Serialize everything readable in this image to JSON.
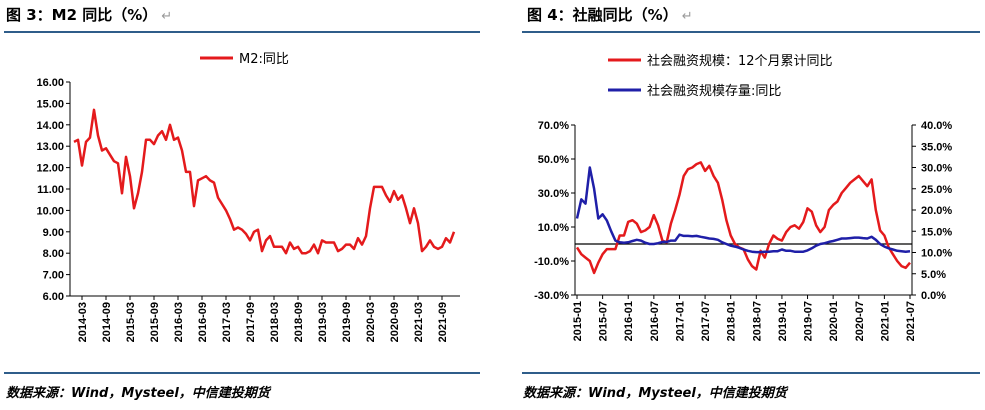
{
  "figure_left": {
    "title": "图 3：M2 同比（%）",
    "return_mark": "↵",
    "source": "数据来源：Wind，Mysteel，中信建投期货"
  },
  "figure_right": {
    "title": "图 4：社融同比（%）",
    "return_mark": "↵",
    "source": "数据来源：Wind，Mysteel，中信建投期货"
  },
  "colors": {
    "red": "#e41a1c",
    "blue": "#1f1fa8",
    "rule": "#2f5d8a"
  },
  "chart_data": [
    {
      "type": "line",
      "legend_position": "top-center",
      "y_tick_labels": [
        "16.00",
        "15.00",
        "14.00",
        "13.00",
        "12.00",
        "11.00",
        "10.00",
        "9.00",
        "8.00",
        "7.00",
        "6.00"
      ],
      "ylim": [
        6,
        16
      ],
      "x_tick_labels": [
        "2014-03",
        "2014-09",
        "2015-03",
        "2015-09",
        "2016-03",
        "2016-09",
        "2017-03",
        "2017-09",
        "2018-03",
        "2018-09",
        "2019-03",
        "2019-09",
        "2020-03",
        "2020-09",
        "2021-03",
        "2021-09"
      ],
      "series": [
        {
          "name": "M2:同比",
          "color": "#e41a1c",
          "start": "2014-01",
          "values": [
            13.2,
            13.3,
            12.1,
            13.2,
            13.4,
            14.7,
            13.5,
            12.8,
            12.9,
            12.6,
            12.3,
            12.2,
            10.8,
            12.5,
            11.6,
            10.1,
            10.8,
            11.8,
            13.3,
            13.3,
            13.1,
            13.5,
            13.7,
            13.3,
            14.0,
            13.3,
            13.4,
            12.8,
            11.8,
            11.8,
            10.2,
            11.4,
            11.5,
            11.6,
            11.4,
            11.3,
            10.6,
            10.3,
            10.0,
            9.6,
            9.1,
            9.2,
            9.1,
            8.9,
            8.6,
            9.0,
            9.1,
            8.1,
            8.6,
            8.8,
            8.3,
            8.3,
            8.3,
            8.0,
            8.5,
            8.2,
            8.3,
            8.0,
            8.0,
            8.1,
            8.4,
            8.0,
            8.6,
            8.5,
            8.5,
            8.5,
            8.1,
            8.2,
            8.4,
            8.4,
            8.2,
            8.7,
            8.4,
            8.8,
            10.1,
            11.1,
            11.1,
            11.1,
            10.7,
            10.4,
            10.9,
            10.5,
            10.7,
            10.1,
            9.4,
            10.1,
            9.4,
            8.1,
            8.3,
            8.6,
            8.3,
            8.2,
            8.3,
            8.7,
            8.5,
            9.0
          ]
        }
      ]
    },
    {
      "type": "line",
      "legend_position": "top-left",
      "y_left_tick_labels": [
        "70.0%",
        "50.0%",
        "30.0%",
        "10.0%",
        "-10.0%",
        "-30.0%"
      ],
      "y_left_lim": [
        -30,
        70
      ],
      "y_right_tick_labels": [
        "40.0%",
        "35.0%",
        "30.0%",
        "25.0%",
        "20.0%",
        "15.0%",
        "10.0%",
        "5.0%",
        "0.0%"
      ],
      "y_right_lim": [
        0,
        40
      ],
      "x_tick_labels": [
        "2015-01",
        "2015-07",
        "2016-01",
        "2016-07",
        "2017-01",
        "2017-07",
        "2018-01",
        "2018-07",
        "2019-01",
        "2019-07",
        "2020-01",
        "2020-07",
        "2021-01",
        "2021-07"
      ],
      "series": [
        {
          "name": "社会融资规模：12个月累计同比",
          "axis": "left",
          "color": "#e41a1c",
          "start": "2015-01",
          "values": [
            -2,
            -6,
            -8,
            -10,
            -17,
            -11,
            -6,
            -3,
            -3,
            -3,
            5,
            5,
            13,
            14,
            12,
            7,
            8,
            10,
            17,
            11,
            2,
            1,
            12,
            20,
            29,
            40,
            44,
            45,
            47,
            48,
            43,
            46,
            40,
            36,
            26,
            14,
            5,
            0,
            -2,
            -3,
            -9,
            -13,
            -15,
            -4,
            -8,
            0,
            5,
            3,
            2,
            7,
            10,
            11,
            9,
            13,
            21,
            19,
            11,
            7,
            10,
            20,
            23,
            25,
            30,
            33,
            36,
            38,
            40,
            37,
            34,
            38,
            20,
            8,
            5,
            -2,
            -6,
            -10,
            -13,
            -14,
            -11
          ]
        },
        {
          "name": "社会融资规模存量:同比",
          "axis": "right",
          "color": "#1f1fa8",
          "start": "2015-01",
          "values": [
            18.0,
            22.5,
            21.5,
            30.0,
            25.0,
            18.0,
            19.0,
            17.5,
            15.0,
            12.8,
            12.4,
            12.3,
            12.4,
            12.7,
            13.0,
            12.8,
            12.3,
            12.0,
            12.0,
            12.2,
            12.5,
            12.5,
            12.8,
            12.8,
            14.2,
            13.9,
            13.9,
            13.8,
            13.9,
            13.7,
            13.5,
            13.3,
            13.2,
            13.0,
            12.4,
            12.0,
            11.6,
            11.4,
            11.1,
            10.7,
            10.4,
            10.2,
            10.1,
            10.1,
            10.2,
            10.2,
            10.3,
            10.3,
            10.7,
            10.4,
            10.4,
            10.2,
            10.2,
            10.2,
            10.5,
            11.0,
            11.6,
            12.0,
            12.2,
            12.5,
            12.7,
            13.0,
            13.3,
            13.3,
            13.4,
            13.5,
            13.5,
            13.4,
            13.3,
            13.7,
            13.0,
            12.0,
            11.4,
            11.0,
            10.7,
            10.4,
            10.3,
            10.2,
            10.3
          ]
        }
      ]
    }
  ]
}
